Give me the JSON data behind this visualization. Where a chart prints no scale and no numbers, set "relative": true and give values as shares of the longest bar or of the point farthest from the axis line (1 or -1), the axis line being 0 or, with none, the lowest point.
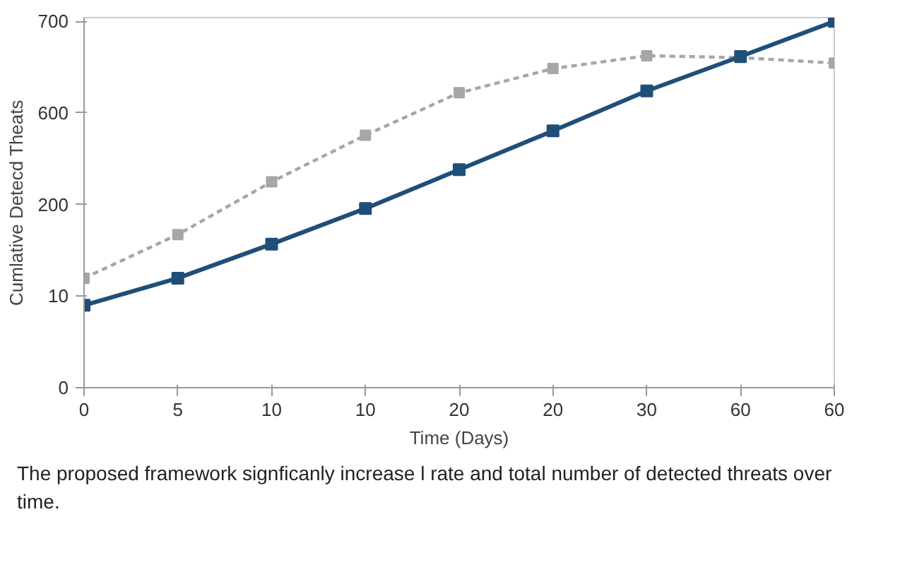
{
  "chart_data": {
    "type": "line",
    "xlabel": "Time (Days)",
    "ylabel": "Cumlative Detecd Theats",
    "annotations": [
      "The proposed framework signficanly increase l rate and total number of detected threats over time.",
      "0",
      "10",
      "200",
      "600",
      "700"
    ],
    "categories": [
      "0",
      "5",
      "10",
      "10",
      "20",
      "20",
      "30",
      "60",
      "60"
    ],
    "relative": true,
    "series": [
      {
        "color": "#a6a6a6",
        "line_style": "dashed",
        "values": [
          0.299,
          0.418,
          0.562,
          0.689,
          0.805,
          0.871,
          0.906,
          0.901,
          0.886
        ]
      },
      {
        "color": "#1f4e79",
        "line_style": "solid",
        "values": [
          0.225,
          0.299,
          0.392,
          0.489,
          0.595,
          0.701,
          0.81,
          0.904,
          1
        ]
      }
    ],
    "marker": "square",
    "grid": false
  }
}
